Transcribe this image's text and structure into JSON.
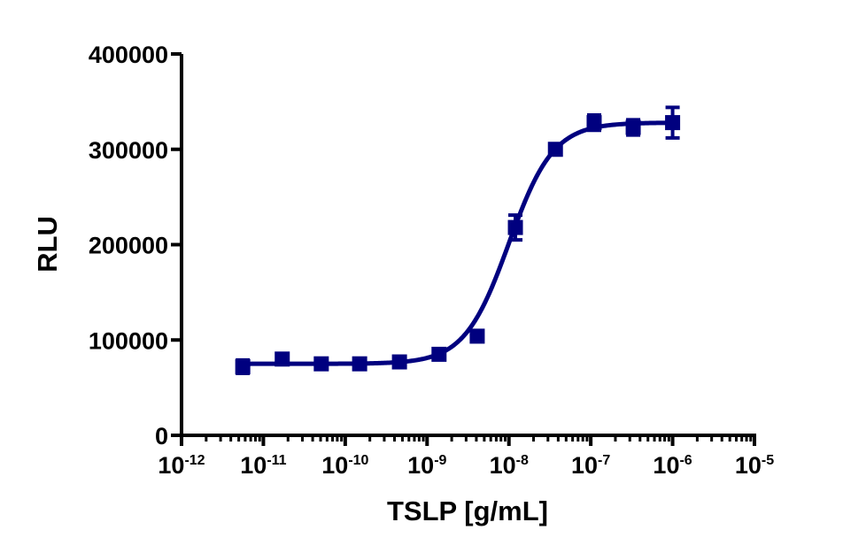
{
  "chart_data": {
    "type": "scatter",
    "subtype": "dose-response (log x) with fitted sigmoidal curve",
    "title": "",
    "xlabel": "TSLP [g/mL]",
    "ylabel": "RLU",
    "xscale": "log",
    "xlim": [
      1e-12,
      1e-05
    ],
    "ylim": [
      0,
      400000
    ],
    "x_ticks": [
      "10-12",
      "10-11",
      "10-10",
      "10-9",
      "10-8",
      "10-7",
      "10-6",
      "10-5"
    ],
    "x_tick_labels": [
      {
        "base": "10",
        "exp": "-12"
      },
      {
        "base": "10",
        "exp": "-11"
      },
      {
        "base": "10",
        "exp": "-10"
      },
      {
        "base": "10",
        "exp": "-9"
      },
      {
        "base": "10",
        "exp": "-8"
      },
      {
        "base": "10",
        "exp": "-7"
      },
      {
        "base": "10",
        "exp": "-6"
      },
      {
        "base": "10",
        "exp": "-5"
      }
    ],
    "y_ticks": [
      "0",
      "100000",
      "200000",
      "300000",
      "400000"
    ],
    "grid": false,
    "legend": null,
    "color": "#00007f",
    "series": [
      {
        "name": "TSLP",
        "marker": "square",
        "x": [
          5.6e-12,
          1.7e-11,
          5.1e-11,
          1.5e-10,
          4.6e-10,
          1.4e-09,
          4.1e-09,
          1.2e-08,
          3.7e-08,
          1.1e-07,
          3.3e-07,
          1e-06
        ],
        "y": [
          72000,
          80000,
          75000,
          75000,
          77000,
          85000,
          104000,
          218000,
          300000,
          328000,
          323000,
          328000
        ],
        "error": [
          7000,
          3000,
          2000,
          2000,
          2000,
          3000,
          3000,
          13000,
          3000,
          8000,
          8000,
          16000
        ]
      }
    ],
    "fit": {
      "model": "4PL sigmoid",
      "bottom": 75000,
      "top": 328000,
      "ec50": 1e-08,
      "hill": 1.6
    }
  }
}
